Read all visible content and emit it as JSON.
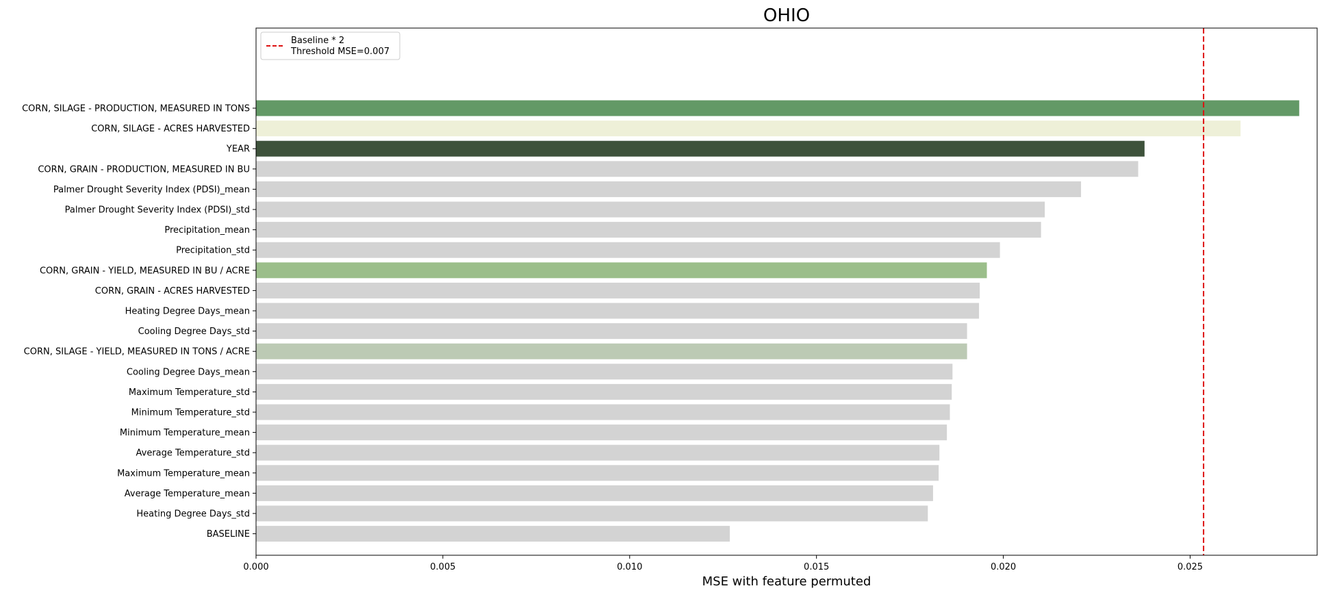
{
  "chart_data": {
    "type": "bar",
    "orientation": "horizontal",
    "title": "OHIO",
    "xlabel": "MSE with feature permuted",
    "ylabel": "",
    "xlim": [
      0,
      0.0284
    ],
    "xticks": [
      0.0,
      0.005,
      0.01,
      0.015,
      0.02,
      0.025
    ],
    "xtick_labels": [
      "0.000",
      "0.005",
      "0.010",
      "0.015",
      "0.020",
      "0.025"
    ],
    "categories": [
      "CORN, SILAGE - PRODUCTION, MEASURED IN TONS",
      "CORN, SILAGE - ACRES HARVESTED",
      "YEAR",
      "CORN, GRAIN - PRODUCTION, MEASURED IN BU",
      "Palmer Drought Severity Index (PDSI)_mean",
      "Palmer Drought Severity Index (PDSI)_std",
      "Precipitation_mean",
      "Precipitation_std",
      "CORN, GRAIN - YIELD, MEASURED IN BU / ACRE",
      "CORN, GRAIN - ACRES HARVESTED",
      "Heating Degree Days_mean",
      "Cooling Degree Days_std",
      "CORN, SILAGE - YIELD, MEASURED IN TONS / ACRE",
      "Cooling Degree Days_mean",
      "Maximum Temperature_std",
      "Minimum Temperature_std",
      "Minimum Temperature_mean",
      "Average Temperature_std",
      "Maximum Temperature_mean",
      "Average Temperature_mean",
      "Heating Degree Days_std",
      "BASELINE"
    ],
    "values": [
      0.02792,
      0.02635,
      0.02378,
      0.02361,
      0.02208,
      0.02111,
      0.02101,
      0.01991,
      0.01956,
      0.01937,
      0.01935,
      0.01903,
      0.01903,
      0.01864,
      0.01862,
      0.01857,
      0.01849,
      0.01829,
      0.01827,
      0.01812,
      0.01798,
      0.01268
    ],
    "colors": [
      "#639966",
      "#eef0d8",
      "#3e523b",
      "#d3d3d3",
      "#d3d3d3",
      "#d3d3d3",
      "#d3d3d3",
      "#d3d3d3",
      "#9bbe8a",
      "#d3d3d3",
      "#d3d3d3",
      "#d3d3d3",
      "#bccab4",
      "#d3d3d3",
      "#d3d3d3",
      "#d3d3d3",
      "#d3d3d3",
      "#d3d3d3",
      "#d3d3d3",
      "#d3d3d3",
      "#d3d3d3",
      "#d3d3d3"
    ],
    "threshold": {
      "value": 0.02536,
      "color": "#dd1111",
      "style": "dashed"
    },
    "legend": {
      "placement": "top-left",
      "entries": [
        "Baseline * 2",
        "Threshold MSE=0.007"
      ]
    },
    "grid": false
  }
}
